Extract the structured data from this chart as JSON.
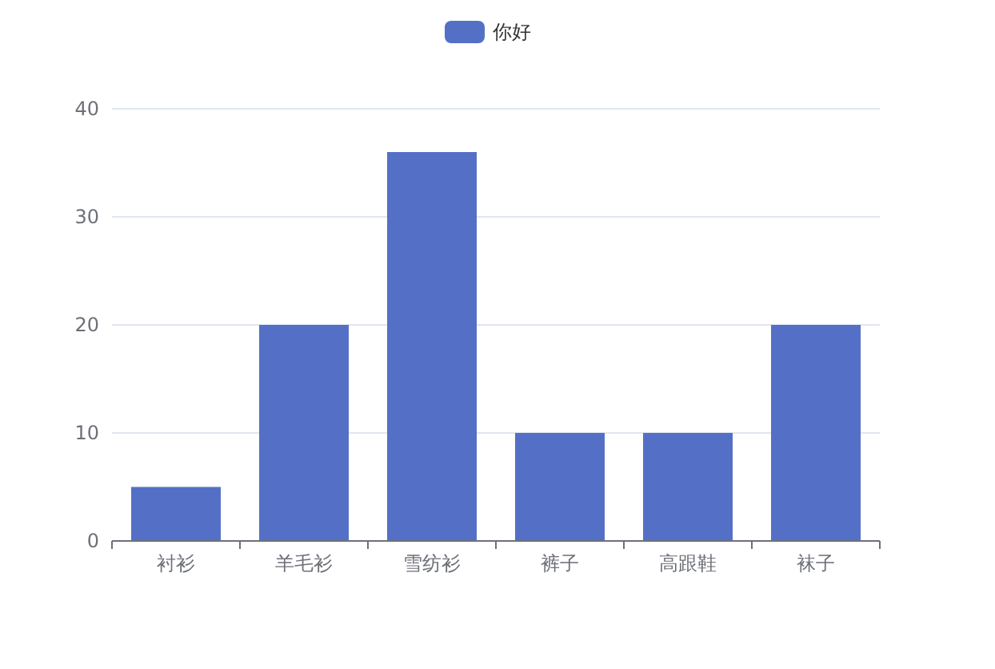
{
  "chart_data": {
    "type": "bar",
    "categories": [
      "衬衫",
      "羊毛衫",
      "雪纺衫",
      "裤子",
      "高跟鞋",
      "袜子"
    ],
    "series": [
      {
        "name": "你好",
        "color": "#5470c6",
        "values": [
          5,
          20,
          36,
          10,
          10,
          20
        ]
      }
    ],
    "ylim": [
      0,
      40
    ],
    "yticks": [
      0,
      10,
      20,
      30,
      40
    ],
    "grid": "y",
    "legend": "top"
  }
}
